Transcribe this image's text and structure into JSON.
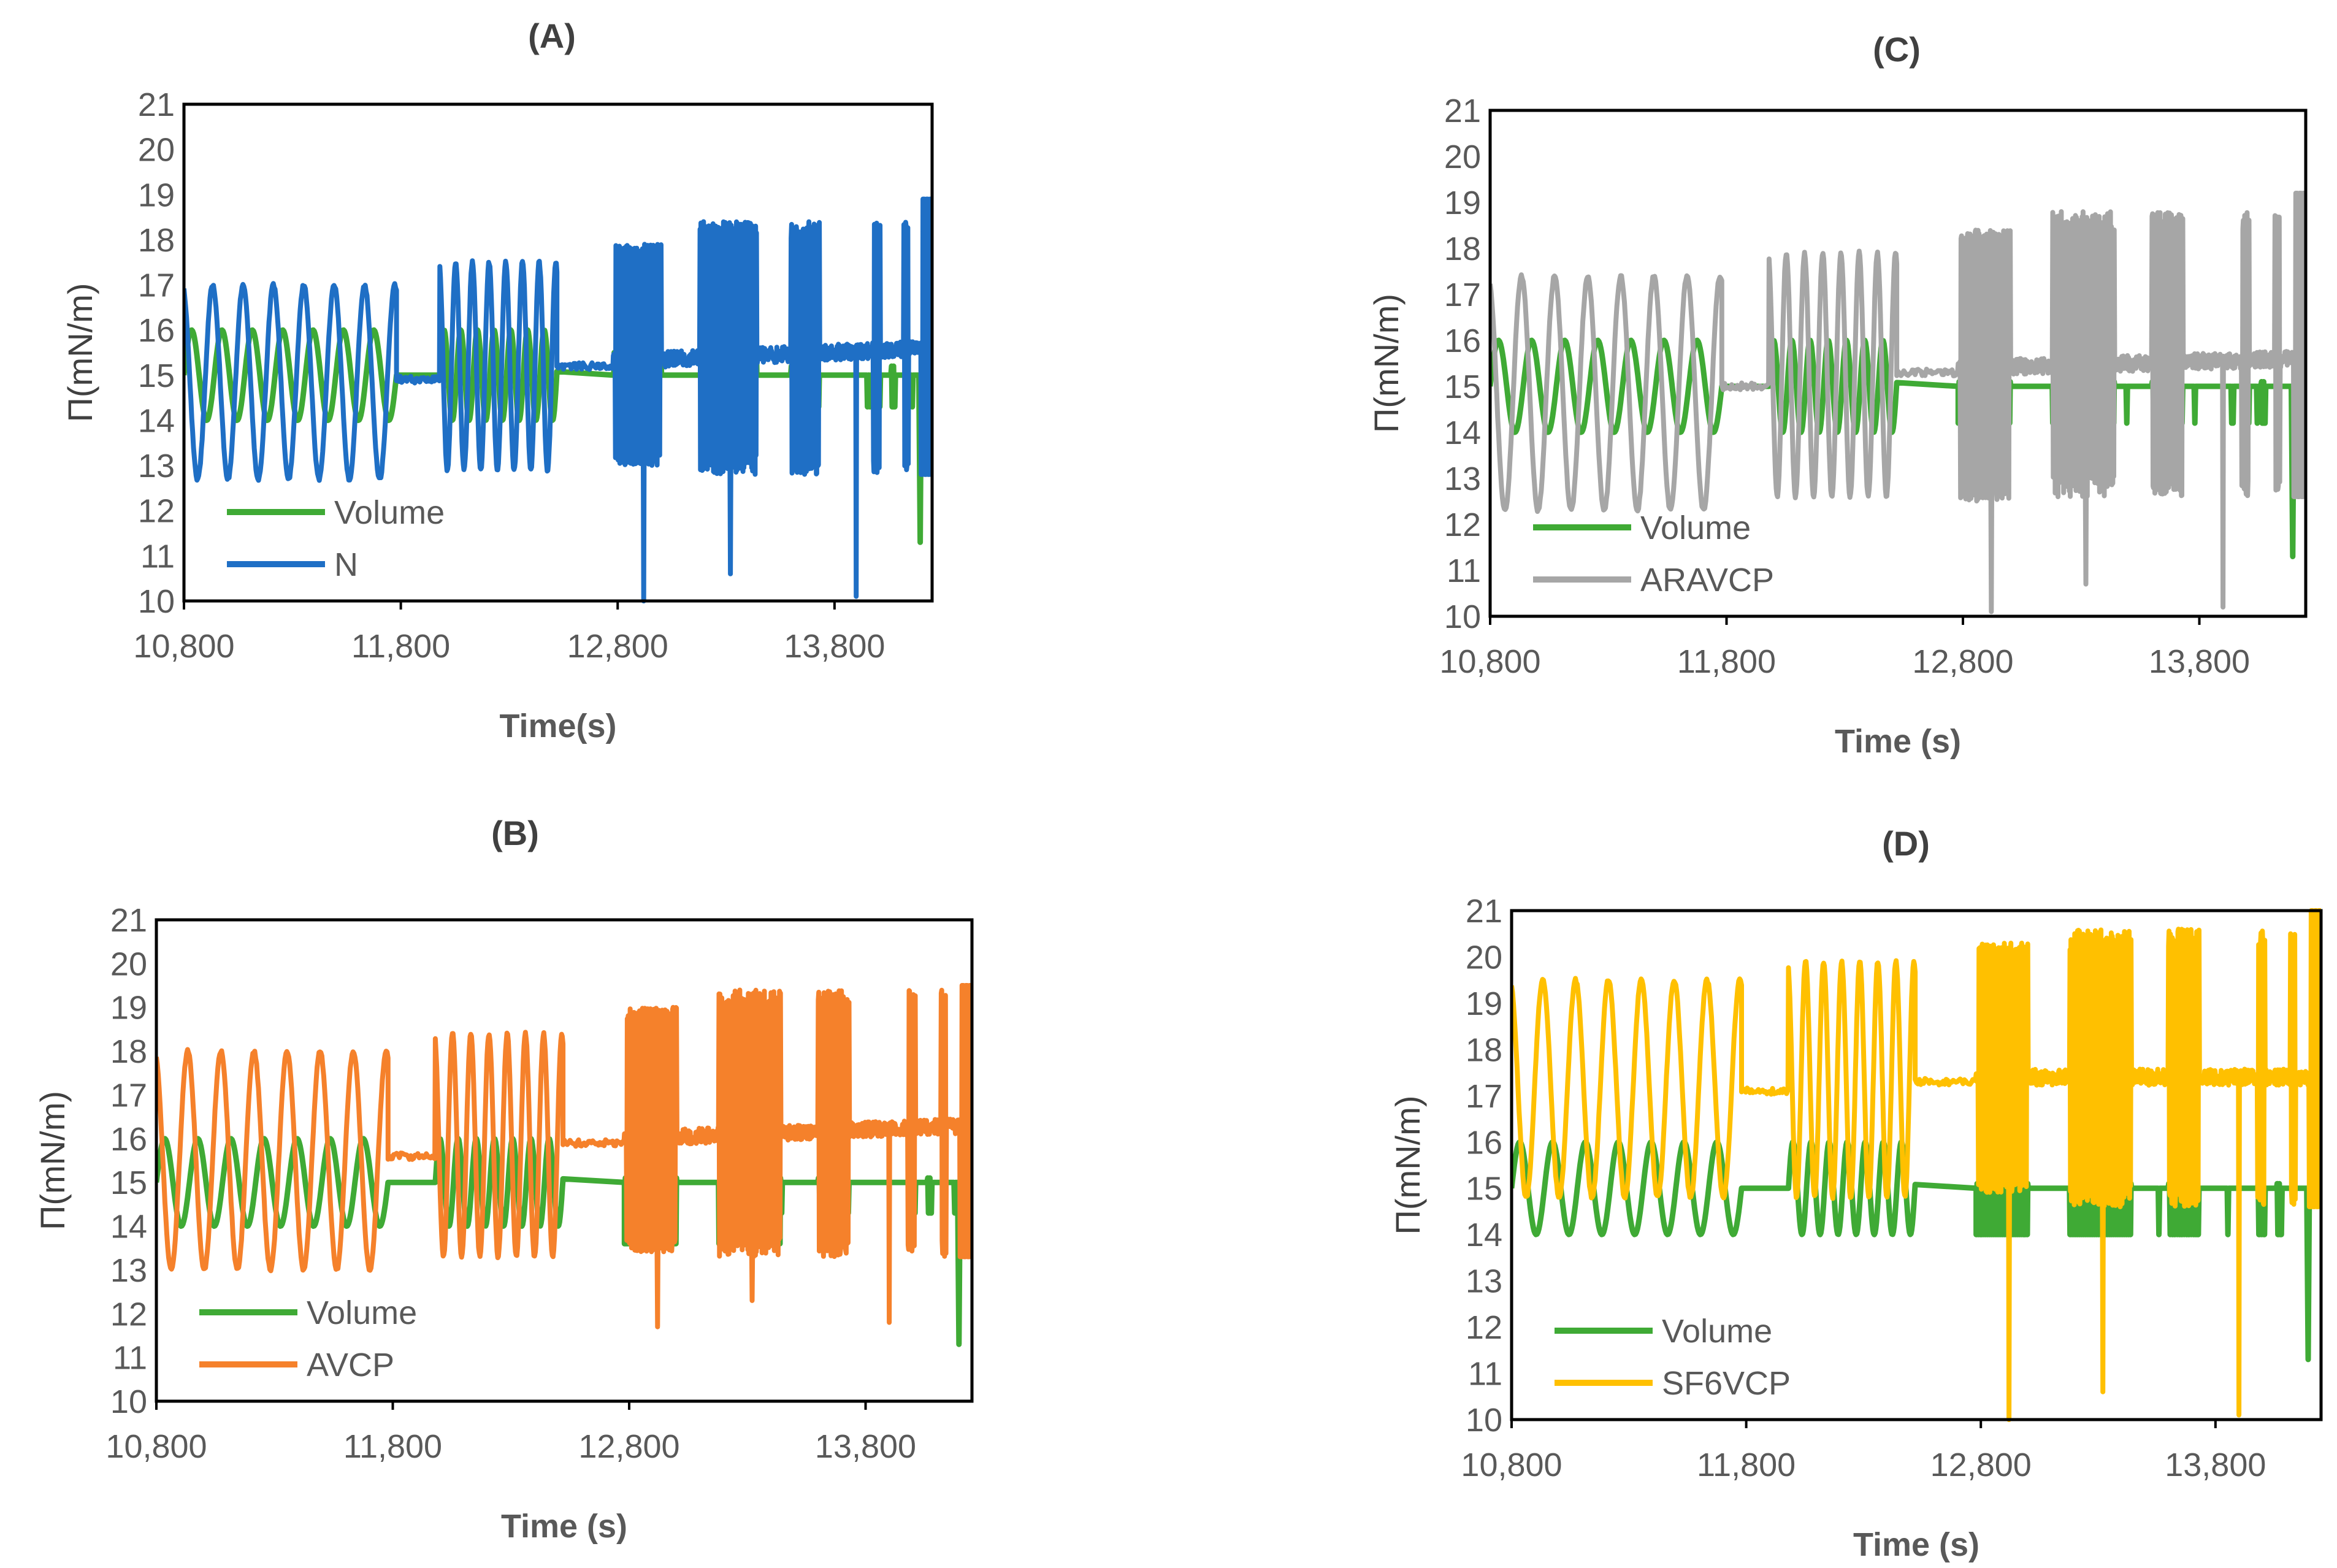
{
  "chart_data": [
    {
      "type": "line",
      "title": "(A)",
      "xlabel": "Time(s)",
      "ylabel": "Π(mN/m)",
      "xlim": [
        10800,
        14250
      ],
      "ylim": [
        10,
        21
      ],
      "xticks": [
        "10,800",
        "11,800",
        "12,800",
        "13,800"
      ],
      "yticks": [
        "10",
        "11",
        "12",
        "13",
        "14",
        "15",
        "16",
        "17",
        "18",
        "19",
        "20",
        "21"
      ],
      "legend_position": "bottom-left",
      "grid": false,
      "series": [
        {
          "name": "Volume",
          "color": "#3faa35",
          "pattern": {
            "base": 15,
            "s1_amp": 1,
            "s2_amp": 1,
            "s3_lo": 15,
            "s3_hi": 15.5,
            "s4_lo": 14.3,
            "s4_hi": 15.2,
            "dip": 11.3
          }
        },
        {
          "name": "N",
          "color": "#1f6fc5",
          "pattern": {
            "plateau1": 14.9,
            "s1_lo": 12.7,
            "s1_hi": 17.0,
            "s2_lo": 12.9,
            "s2_hi": 17.5,
            "s3_lo": 13.0,
            "s3_hi": 17.9,
            "plateau3": 15.3,
            "s4_lo": 12.8,
            "s4_hi": 18.4,
            "plateau4": 15.6,
            "spike_min": 10.0,
            "spike_max": 18.9
          }
        }
      ]
    },
    {
      "type": "line",
      "title": "(B)",
      "xlabel": "Time (s)",
      "ylabel": "Π(mN/m)",
      "xlim": [
        10800,
        14250
      ],
      "ylim": [
        10,
        21
      ],
      "xticks": [
        "10,800",
        "11,800",
        "12,800",
        "13,800"
      ],
      "yticks": [
        "10",
        "11",
        "12",
        "13",
        "14",
        "15",
        "16",
        "17",
        "18",
        "19",
        "20",
        "21"
      ],
      "legend_position": "bottom-left",
      "grid": false,
      "series": [
        {
          "name": "Volume",
          "color": "#3faa35",
          "pattern": {
            "base": 15,
            "s1_amp": 1,
            "s2_amp": 1,
            "s3_lo": 13.6,
            "s3_hi": 15.1,
            "s4_lo": 14.3,
            "s4_hi": 15.1,
            "dip": 11.3
          }
        },
        {
          "name": "AVCP",
          "color": "#f5812b",
          "pattern": {
            "plateau1": 15.6,
            "s1_lo": 13.0,
            "s1_hi": 18.0,
            "s2_lo": 13.3,
            "s2_hi": 18.4,
            "s3_lo": 13.4,
            "s3_hi": 19.0,
            "plateau3": 16.0,
            "s4_lo": 13.3,
            "s4_hi": 19.4,
            "plateau4": 16.3,
            "spike_min": 11.7,
            "spike_max": 19.5
          }
        }
      ]
    },
    {
      "type": "line",
      "title": "(C)",
      "xlabel": "Time (s)",
      "ylabel": "Π(mN/m)",
      "xlim": [
        10800,
        14250
      ],
      "ylim": [
        10,
        21
      ],
      "xticks": [
        "10,800",
        "11,800",
        "12,800",
        "13,800"
      ],
      "yticks": [
        "10",
        "11",
        "12",
        "13",
        "14",
        "15",
        "16",
        "17",
        "18",
        "19",
        "20",
        "21"
      ],
      "legend_position": "bottom-left",
      "grid": false,
      "series": [
        {
          "name": "Volume",
          "color": "#3faa35",
          "pattern": {
            "base": 15,
            "s1_amp": 1,
            "s2_amp": 1,
            "s3_lo": 14.2,
            "s3_hi": 15.1,
            "s4_lo": 14.2,
            "s4_hi": 15.1,
            "dip": 11.3
          }
        },
        {
          "name": "ARAVCP",
          "color": "#a6a6a6",
          "pattern": {
            "plateau1": 15.0,
            "s1_lo": 12.3,
            "s1_hi": 17.4,
            "s2_lo": 12.6,
            "s2_hi": 17.9,
            "s3_lo": 12.5,
            "s3_hi": 18.4,
            "plateau3": 15.4,
            "s4_lo": 12.6,
            "s4_hi": 18.8,
            "plateau4": 15.6,
            "spike_min": 10.1,
            "spike_max": 19.2
          }
        }
      ]
    },
    {
      "type": "line",
      "title": "(D)",
      "xlabel": "Time (s)",
      "ylabel": "Π(mN/m)",
      "xlim": [
        10800,
        14250
      ],
      "ylim": [
        10,
        21
      ],
      "xticks": [
        "10,800",
        "11,800",
        "12,800",
        "13,800"
      ],
      "yticks": [
        "10",
        "11",
        "12",
        "13",
        "14",
        "15",
        "16",
        "17",
        "18",
        "19",
        "20",
        "21"
      ],
      "legend_position": "bottom-left",
      "grid": false,
      "series": [
        {
          "name": "Volume",
          "color": "#3faa35",
          "pattern": {
            "base": 15,
            "s1_amp": 1,
            "s2_amp": 1,
            "s3_lo": 14.0,
            "s3_hi": 15.1,
            "s4_lo": 14.0,
            "s4_hi": 15.1,
            "dip": 11.3
          }
        },
        {
          "name": "SF6VCP",
          "color": "#ffc000",
          "pattern": {
            "plateau1": 17.1,
            "s1_lo": 14.8,
            "s1_hi": 19.5,
            "s2_lo": 14.8,
            "s2_hi": 19.9,
            "s3_lo": 14.9,
            "s3_hi": 20.3,
            "plateau3": 17.4,
            "s4_lo": 14.6,
            "s4_hi": 20.6,
            "plateau4": 17.4,
            "spike_min": 10.0,
            "spike_max": 21.0
          }
        }
      ]
    }
  ]
}
